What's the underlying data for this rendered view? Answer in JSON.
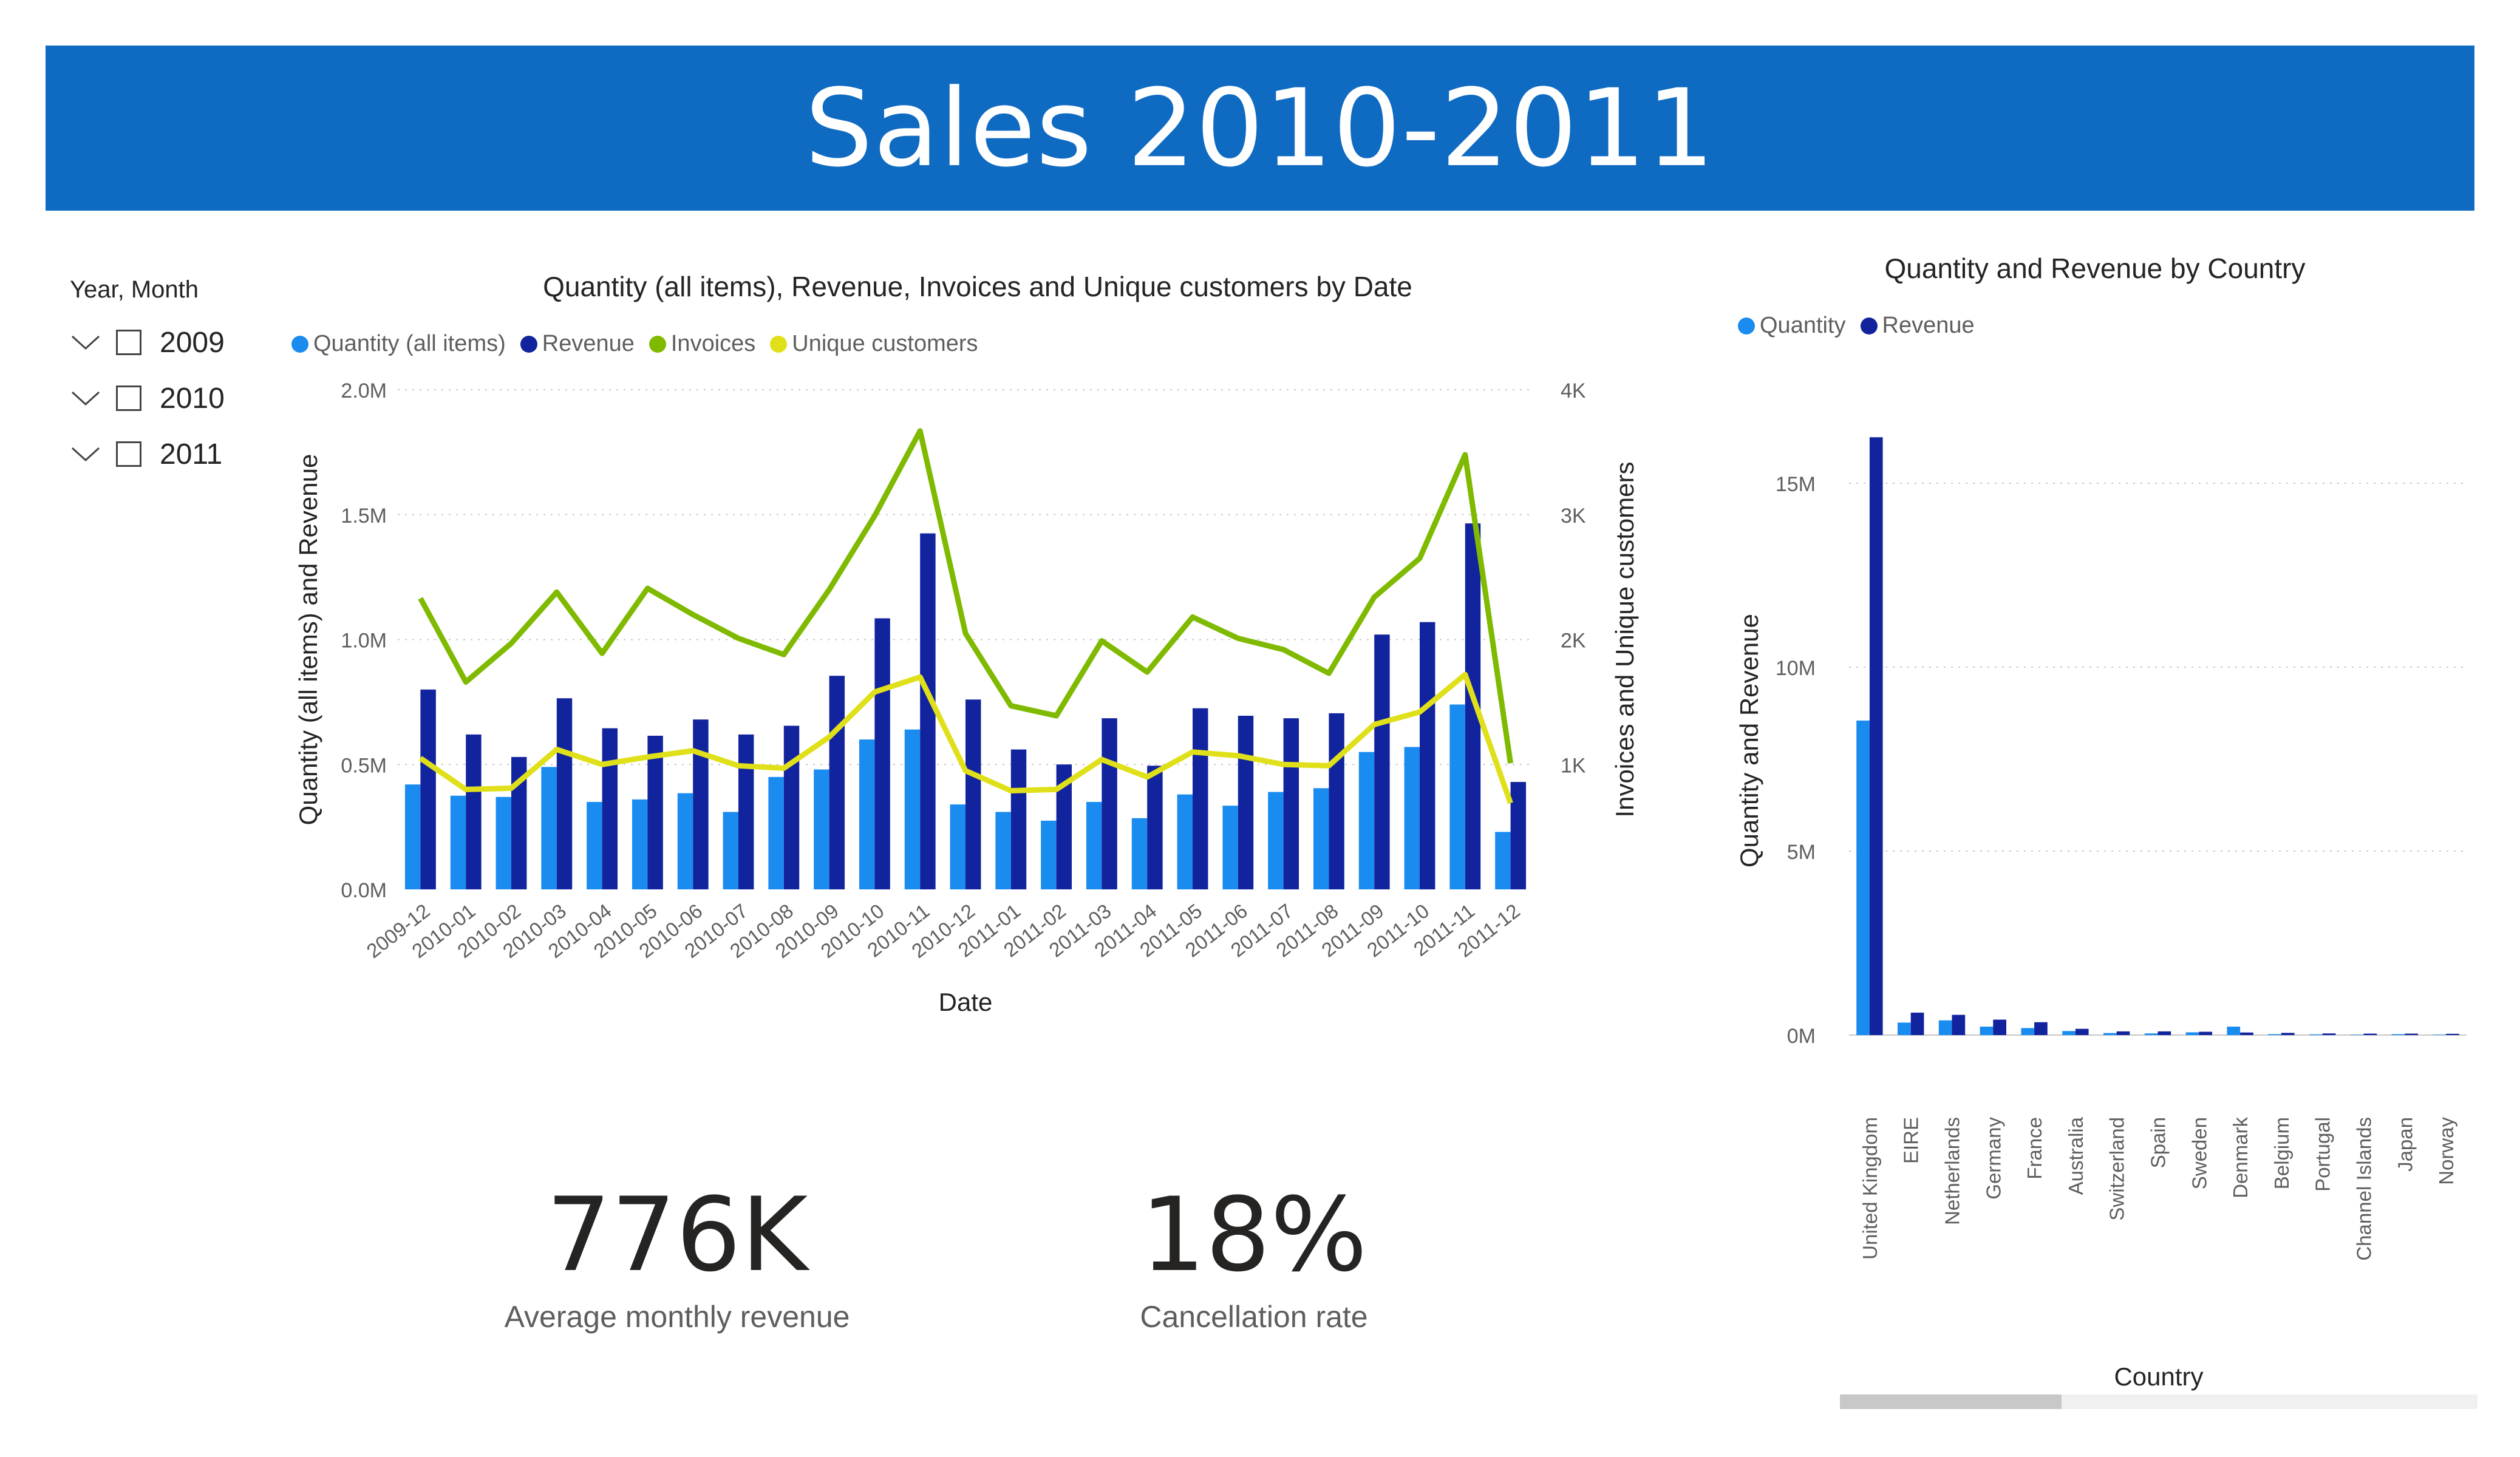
{
  "report": {
    "title": "Sales 2010-2011"
  },
  "slicer": {
    "header": "Year, Month",
    "items": [
      {
        "label": "2009",
        "checked": false
      },
      {
        "label": "2010",
        "checked": false
      },
      {
        "label": "2011",
        "checked": false
      }
    ]
  },
  "kpis": {
    "revenue": {
      "value": "776K",
      "label": "Average monthly revenue"
    },
    "cancellation": {
      "value": "18%",
      "label": "Cancellation rate"
    }
  },
  "colors": {
    "banner": "#0f6bc2",
    "quantity": "#1a8cf0",
    "revenue": "#12239e",
    "invoices": "#7fba00",
    "unique_customers": "#e0e01a"
  },
  "chart_data": [
    {
      "type": "bar",
      "title": "Quantity (all items), Revenue, Invoices and Unique customers by Date",
      "xlabel": "Date",
      "ylabel": "Quantity (all items) and Revenue",
      "ylabel_right": "Invoices and Unique customers",
      "ylim": [
        0,
        2000000
      ],
      "ylim_right": [
        0,
        4000
      ],
      "yticks": [
        "0.0M",
        "0.5M",
        "1.0M",
        "1.5M",
        "2.0M"
      ],
      "yticks_right": [
        "1K",
        "2K",
        "3K",
        "4K"
      ],
      "categories": [
        "2009-12",
        "2010-01",
        "2010-02",
        "2010-03",
        "2010-04",
        "2010-05",
        "2010-06",
        "2010-07",
        "2010-08",
        "2010-09",
        "2010-10",
        "2010-11",
        "2010-12",
        "2011-01",
        "2011-02",
        "2011-03",
        "2011-04",
        "2011-05",
        "2011-06",
        "2011-07",
        "2011-08",
        "2011-09",
        "2011-10",
        "2011-11",
        "2011-12"
      ],
      "grid": true,
      "legend_position": "top-left",
      "series": [
        {
          "name": "Quantity (all items)",
          "kind": "bar",
          "axis": "left",
          "color": "#1a8cf0",
          "values": [
            420000,
            375000,
            370000,
            490000,
            350000,
            360000,
            385000,
            310000,
            450000,
            480000,
            600000,
            640000,
            340000,
            310000,
            275000,
            350000,
            285000,
            380000,
            335000,
            390000,
            405000,
            550000,
            570000,
            740000,
            230000
          ]
        },
        {
          "name": "Revenue",
          "kind": "bar",
          "axis": "left",
          "color": "#12239e",
          "values": [
            800000,
            620000,
            530000,
            765000,
            645000,
            615000,
            680000,
            620000,
            655000,
            855000,
            1085000,
            1425000,
            760000,
            560000,
            500000,
            685000,
            495000,
            725000,
            695000,
            685000,
            705000,
            1020000,
            1070000,
            1465000,
            430000
          ]
        },
        {
          "name": "Invoices",
          "kind": "line",
          "axis": "right",
          "color": "#7fba00",
          "values": [
            2330,
            1660,
            1970,
            2380,
            1890,
            2410,
            2200,
            2010,
            1880,
            2400,
            2990,
            3670,
            2050,
            1470,
            1390,
            1990,
            1740,
            2180,
            2010,
            1920,
            1730,
            2340,
            2650,
            3480,
            1010
          ]
        },
        {
          "name": "Unique customers",
          "kind": "line",
          "axis": "right",
          "color": "#e0e01a",
          "values": [
            1050,
            800,
            810,
            1120,
            1000,
            1060,
            1110,
            990,
            970,
            1220,
            1580,
            1700,
            950,
            790,
            800,
            1040,
            900,
            1100,
            1070,
            1000,
            990,
            1320,
            1420,
            1720,
            690
          ]
        }
      ]
    },
    {
      "type": "bar",
      "title": "Quantity and Revenue by Country",
      "xlabel": "Country",
      "ylabel": "Quantity and Revenue",
      "ylim": [
        0,
        17000000
      ],
      "yticks": [
        "0M",
        "5M",
        "10M",
        "15M"
      ],
      "categories": [
        "United Kingdom",
        "EIRE",
        "Netherlands",
        "Germany",
        "France",
        "Australia",
        "Switzerland",
        "Spain",
        "Sweden",
        "Denmark",
        "Belgium",
        "Portugal",
        "Channel Islands",
        "Japan",
        "Norway"
      ],
      "grid": true,
      "legend_position": "top-left",
      "series": [
        {
          "name": "Quantity",
          "color": "#1a8cf0",
          "values": [
            8550000,
            340000,
            400000,
            230000,
            190000,
            110000,
            55000,
            45000,
            75000,
            230000,
            25000,
            20000,
            12000,
            25000,
            12000
          ]
        },
        {
          "name": "Revenue",
          "color": "#12239e",
          "values": [
            16250000,
            610000,
            550000,
            420000,
            350000,
            170000,
            100000,
            100000,
            90000,
            70000,
            60000,
            45000,
            40000,
            40000,
            35000
          ]
        }
      ]
    }
  ]
}
